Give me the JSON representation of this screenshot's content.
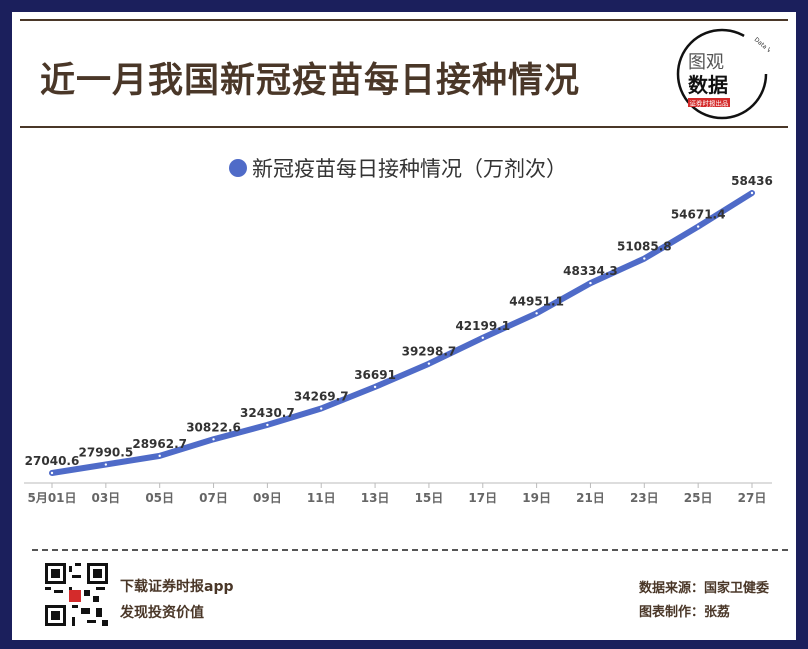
{
  "header": {
    "title": "近一月我国新冠疫苗每日接种情况"
  },
  "logo": {
    "line1": "图观",
    "line2": "数据",
    "badge": "证券时报出品",
    "arc_text": "Data Visualization"
  },
  "footer": {
    "app_line1": "下载证券时报app",
    "app_line2": "发现投资价值",
    "source": "数据来源：国家卫健委",
    "author": "图表制作：张荔"
  },
  "colors": {
    "border": "#1b1f5c",
    "brown": "#4a3728",
    "series": "#4f6bc8"
  },
  "chart_data": {
    "type": "line",
    "legend": "新冠疫苗每日接种情况（万剂次）",
    "legend_position": "top",
    "categories": [
      "5月01日",
      "03日",
      "05日",
      "07日",
      "09日",
      "11日",
      "13日",
      "15日",
      "17日",
      "19日",
      "21日",
      "23日",
      "25日",
      "27日"
    ],
    "series": [
      {
        "name": "新冠疫苗每日接种情况（万剂次）",
        "values": [
          27040.6,
          27990.5,
          28962.7,
          30822.6,
          32430.7,
          34269.7,
          36691,
          39298.7,
          42199.1,
          44951.1,
          48334.3,
          51085.8,
          54671.4,
          58436
        ]
      }
    ],
    "labels": [
      "27040.6",
      "27990.5",
      "28962.7",
      "30822.6",
      "32430.7",
      "34269.7",
      "36691",
      "39298.7",
      "42199.1",
      "44951.1",
      "48334.3",
      "51085.8",
      "54671.4",
      "58436"
    ],
    "grid": false
  }
}
